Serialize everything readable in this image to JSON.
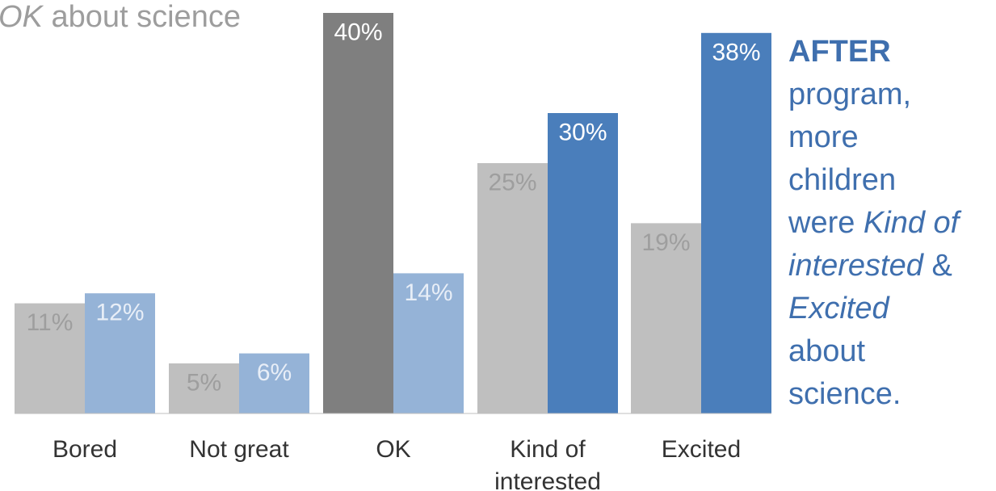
{
  "top_note": {
    "italic": "OK",
    "rest": " about science"
  },
  "annotation": {
    "strong": "AFTER",
    "line2": "program,",
    "line3": "more",
    "line4": "children",
    "line5a": "were ",
    "line5b": "Kind of",
    "line6a": "interested",
    "line6b": " &",
    "line7": "Excited",
    "line8": "about",
    "line9": "science."
  },
  "colors": {
    "before": "#bfbfbf",
    "before_highlight": "#7f7f7f",
    "after_light": "#95b3d7",
    "after_highlight": "#4a7ebb",
    "axis": "#bfbfbf"
  },
  "chart_data": {
    "type": "bar",
    "categories": [
      [
        "Bored"
      ],
      [
        "Not great"
      ],
      [
        "OK"
      ],
      [
        "Kind of",
        "interested"
      ],
      [
        "Excited"
      ]
    ],
    "series": [
      {
        "values": [
          11,
          5,
          40,
          25,
          19
        ],
        "labels": [
          "11%",
          "5%",
          "40%",
          "25%",
          "19%"
        ],
        "fills": [
          "before",
          "before",
          "before_highlight",
          "before",
          "before"
        ],
        "label_colors": [
          "#9e9e9e",
          "#9e9e9e",
          "#ffffff",
          "#9e9e9e",
          "#9e9e9e"
        ]
      },
      {
        "values": [
          12,
          6,
          14,
          30,
          38
        ],
        "labels": [
          "12%",
          "6%",
          "14%",
          "30%",
          "38%"
        ],
        "fills": [
          "after_light",
          "after_light",
          "after_light",
          "after_highlight",
          "after_highlight"
        ],
        "label_colors": [
          "#e8eef7",
          "#e8eef7",
          "#e8eef7",
          "#ffffff",
          "#ffffff"
        ]
      }
    ],
    "ylim": [
      0,
      40
    ]
  }
}
